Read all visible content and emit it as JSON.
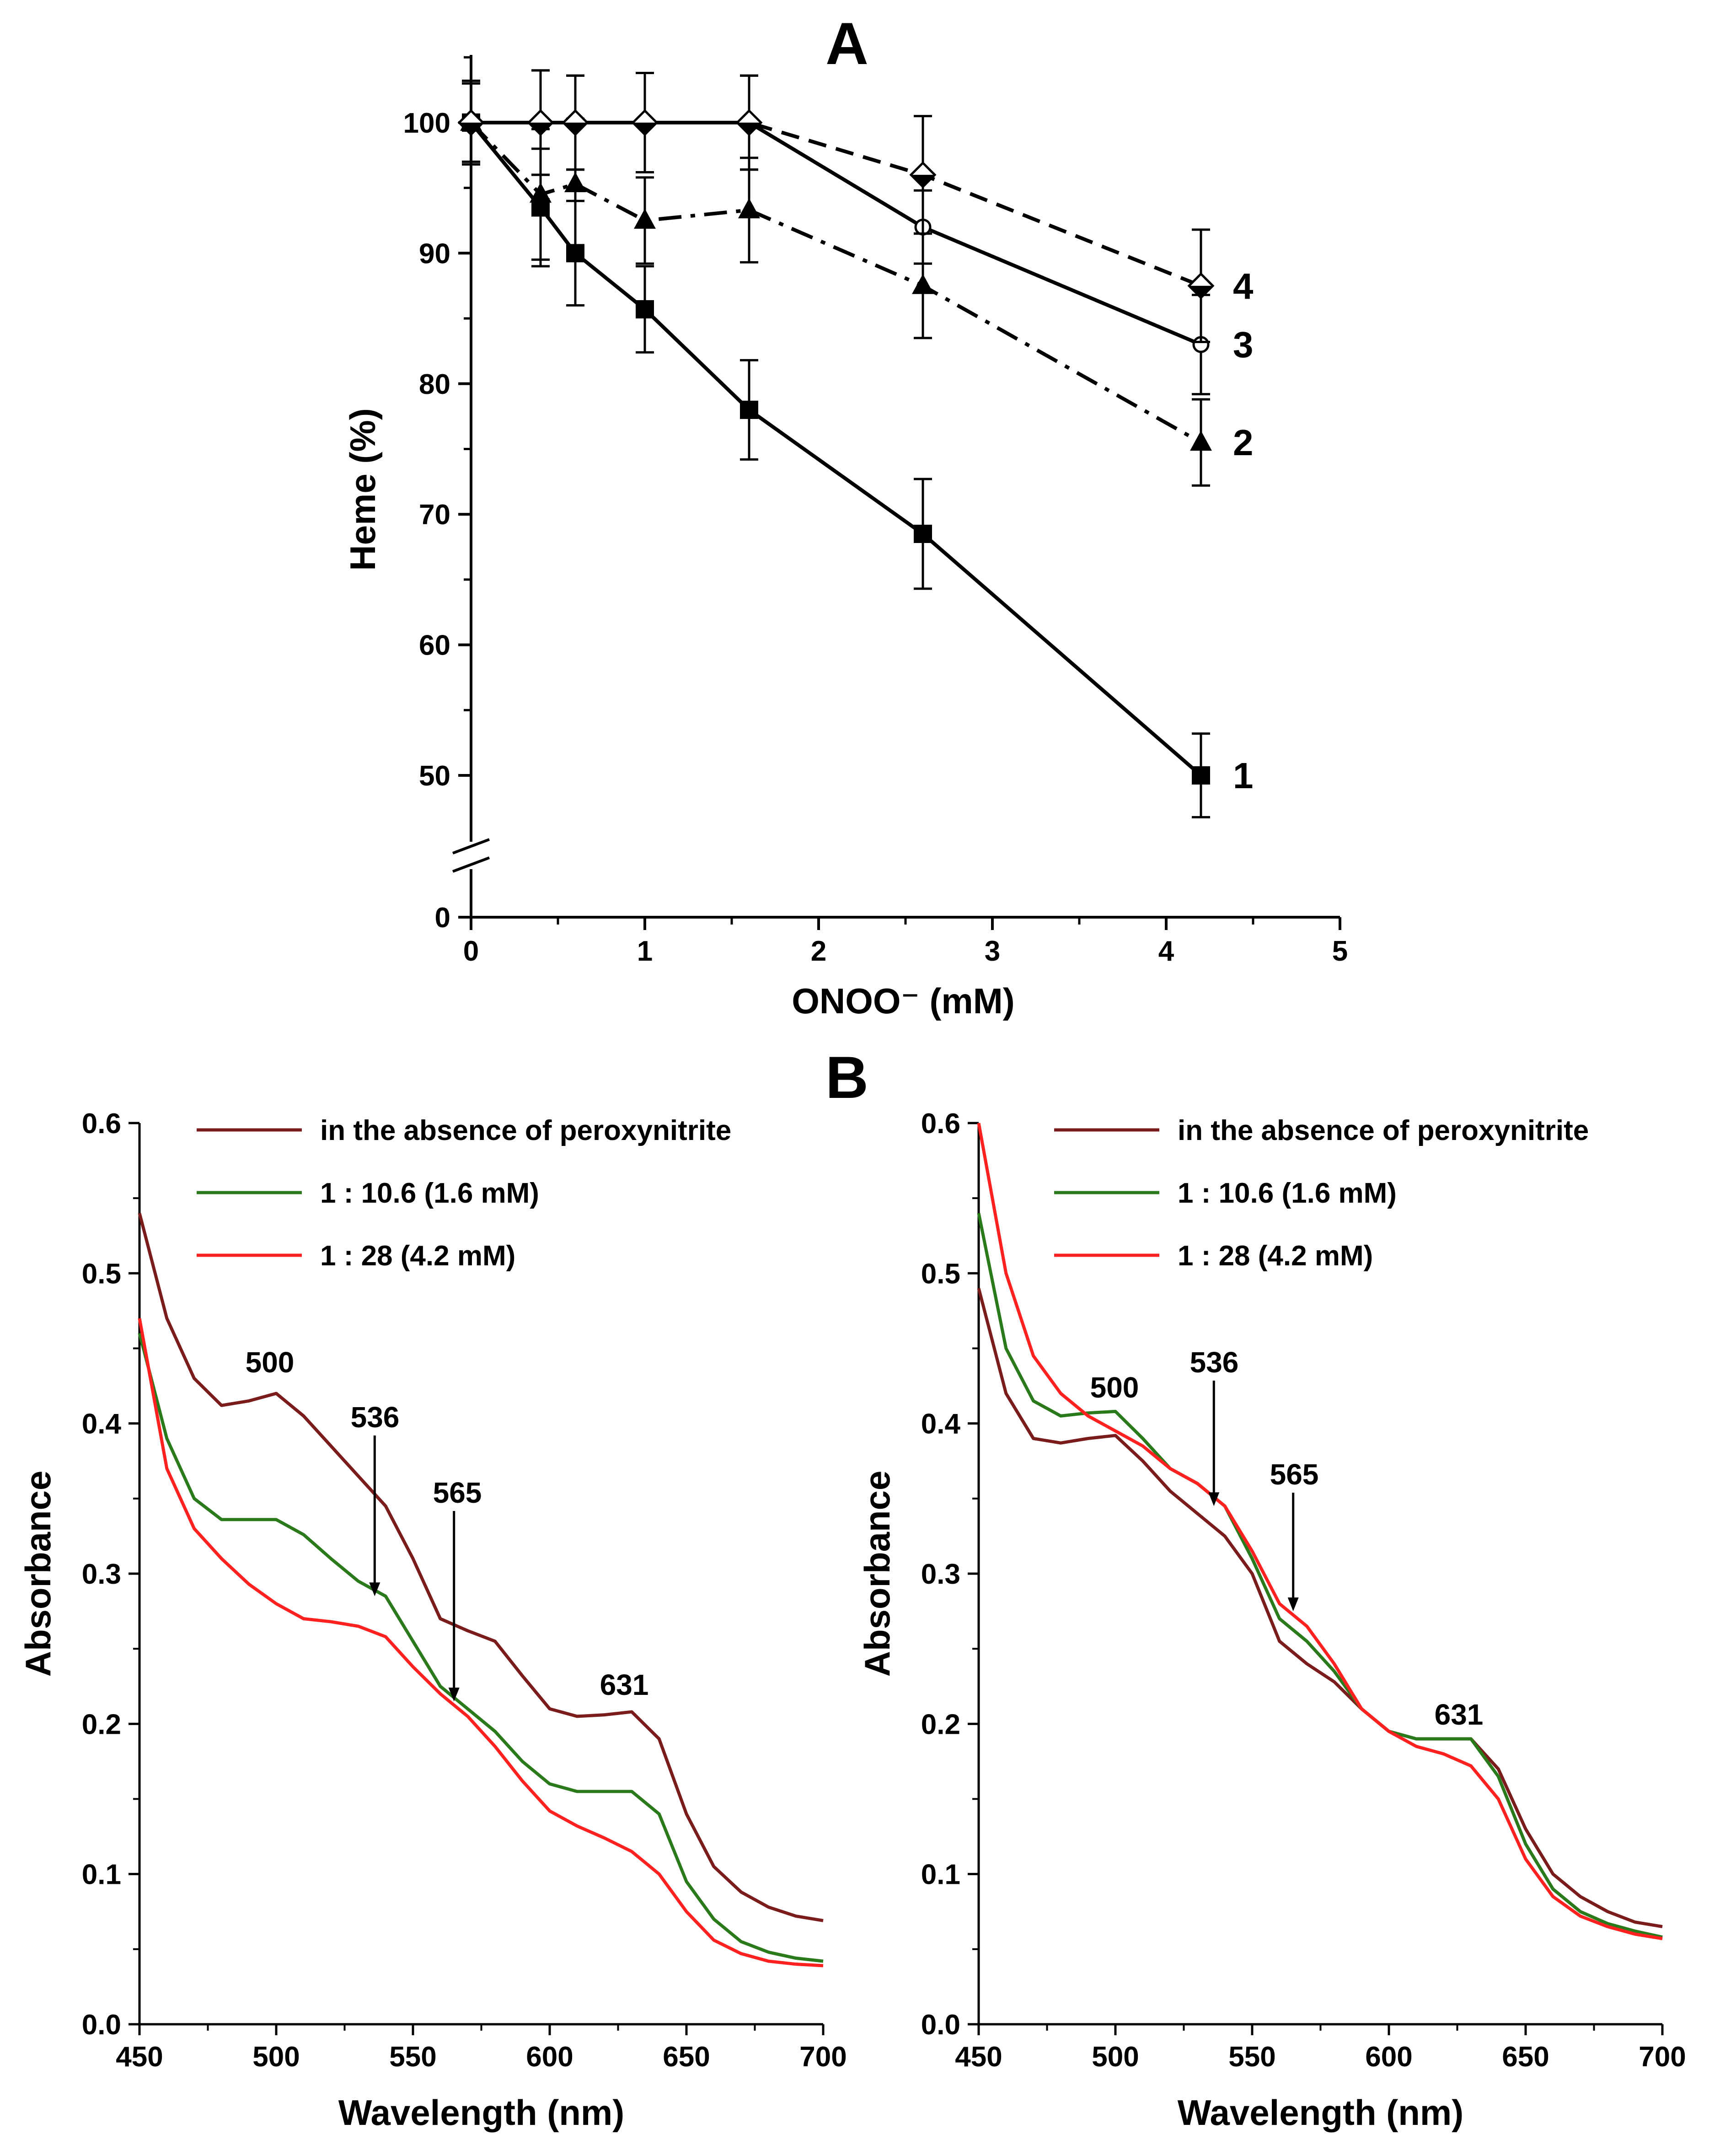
{
  "panel_a_label": "A",
  "panel_b_label": "B",
  "chart_data": [
    {
      "id": "panelA",
      "type": "line",
      "xlabel": "ONOO⁻ (mM)",
      "ylabel": "Heme (%)",
      "xlim": [
        0,
        5
      ],
      "xticks": [
        "0",
        "1",
        "2",
        "3",
        "4",
        "5"
      ],
      "yticks": [
        "0",
        "50",
        "60",
        "70",
        "80",
        "90",
        "100"
      ],
      "ylim_broken": {
        "low": 0,
        "high": [
          45,
          105
        ]
      },
      "series": [
        {
          "name": "1",
          "marker": "square",
          "line": "solid",
          "x": [
            0,
            0.4,
            0.6,
            1.0,
            1.6,
            2.6,
            4.2
          ],
          "y": [
            100,
            93.5,
            90,
            85.7,
            78,
            68.5,
            50
          ],
          "err": [
            3,
            4.5,
            4,
            3.3,
            3.8,
            4.2,
            3.2
          ]
        },
        {
          "name": "2",
          "marker": "triangle",
          "line": "dashdot",
          "x": [
            0,
            0.4,
            0.6,
            1.0,
            1.6,
            2.6,
            4.2
          ],
          "y": [
            100,
            94.5,
            95.3,
            92.5,
            93.3,
            87.5,
            75.5
          ],
          "err": [
            3,
            5,
            5,
            3.3,
            4,
            4,
            3.3
          ]
        },
        {
          "name": "3",
          "marker": "circle-open",
          "line": "solid",
          "x": [
            0,
            0.4,
            0.6,
            1.0,
            1.6,
            2.6,
            4.2
          ],
          "y": [
            100,
            100,
            100,
            100,
            100,
            92,
            83
          ],
          "err": [
            3.2,
            4,
            3.6,
            3.8,
            3.6,
            2.8,
            3.8
          ]
        },
        {
          "name": "4",
          "marker": "diamond",
          "line": "dashed",
          "x": [
            0,
            0.4,
            0.6,
            1.0,
            1.6,
            2.6,
            4.2
          ],
          "y": [
            100,
            100,
            100,
            100,
            100,
            96,
            87.5
          ],
          "err": [
            3.2,
            4,
            3.6,
            3.8,
            3.6,
            4.5,
            4.3
          ]
        }
      ]
    },
    {
      "id": "panelB1",
      "type": "line",
      "xlabel": "Wavelength (nm)",
      "ylabel": "Absorbance",
      "xlim": [
        450,
        700
      ],
      "ylim": [
        0.0,
        0.6
      ],
      "xticks": [
        "450",
        "500",
        "550",
        "600",
        "650",
        "700"
      ],
      "yticks": [
        "0.0",
        "0.1",
        "0.2",
        "0.3",
        "0.4",
        "0.5",
        "0.6"
      ],
      "peak_labels": [
        "500",
        "536",
        "565",
        "631"
      ],
      "series": [
        {
          "name": "in the absence of peroxynitrite",
          "color": "#7a1c1c",
          "x": [
            450,
            460,
            470,
            480,
            490,
            500,
            510,
            520,
            530,
            540,
            550,
            560,
            570,
            580,
            590,
            600,
            610,
            620,
            630,
            640,
            650,
            660,
            670,
            680,
            690,
            700
          ],
          "y": [
            0.54,
            0.47,
            0.43,
            0.412,
            0.415,
            0.42,
            0.405,
            0.385,
            0.365,
            0.345,
            0.31,
            0.27,
            0.262,
            0.255,
            0.232,
            0.21,
            0.205,
            0.206,
            0.208,
            0.19,
            0.14,
            0.105,
            0.088,
            0.078,
            0.072,
            0.069
          ]
        },
        {
          "name": "1 : 10.6 (1.6 mM)",
          "color": "#2a7a1c",
          "x": [
            450,
            460,
            470,
            480,
            490,
            500,
            510,
            520,
            530,
            540,
            550,
            560,
            570,
            580,
            590,
            600,
            610,
            620,
            630,
            640,
            650,
            660,
            670,
            680,
            690,
            700
          ],
          "y": [
            0.46,
            0.39,
            0.35,
            0.336,
            0.336,
            0.336,
            0.326,
            0.31,
            0.295,
            0.285,
            0.255,
            0.225,
            0.21,
            0.195,
            0.175,
            0.16,
            0.155,
            0.155,
            0.155,
            0.14,
            0.095,
            0.07,
            0.055,
            0.048,
            0.044,
            0.042
          ]
        },
        {
          "name": "1 : 28 (4.2 mM)",
          "color": "#ff2020",
          "x": [
            450,
            460,
            470,
            480,
            490,
            500,
            510,
            520,
            530,
            540,
            550,
            560,
            570,
            580,
            590,
            600,
            610,
            620,
            630,
            640,
            650,
            660,
            670,
            680,
            690,
            700
          ],
          "y": [
            0.47,
            0.37,
            0.33,
            0.31,
            0.293,
            0.28,
            0.27,
            0.268,
            0.265,
            0.258,
            0.238,
            0.22,
            0.205,
            0.185,
            0.162,
            0.142,
            0.132,
            0.124,
            0.115,
            0.1,
            0.075,
            0.056,
            0.047,
            0.042,
            0.04,
            0.039
          ]
        }
      ]
    },
    {
      "id": "panelB2",
      "type": "line",
      "xlabel": "Wavelength (nm)",
      "ylabel": "Absorbance",
      "xlim": [
        450,
        700
      ],
      "ylim": [
        0.0,
        0.6
      ],
      "xticks": [
        "450",
        "500",
        "550",
        "600",
        "650",
        "700"
      ],
      "yticks": [
        "0.0",
        "0.1",
        "0.2",
        "0.3",
        "0.4",
        "0.5",
        "0.6"
      ],
      "peak_labels": [
        "500",
        "536",
        "565",
        "631"
      ],
      "series": [
        {
          "name": "in the absence of peroxynitrite",
          "color": "#7a1c1c",
          "x": [
            450,
            460,
            470,
            480,
            490,
            500,
            510,
            520,
            530,
            540,
            550,
            560,
            570,
            580,
            590,
            600,
            610,
            620,
            630,
            640,
            650,
            660,
            670,
            680,
            690,
            700
          ],
          "y": [
            0.49,
            0.42,
            0.39,
            0.387,
            0.39,
            0.392,
            0.375,
            0.355,
            0.34,
            0.325,
            0.3,
            0.255,
            0.24,
            0.228,
            0.21,
            0.195,
            0.19,
            0.19,
            0.19,
            0.17,
            0.13,
            0.1,
            0.085,
            0.075,
            0.068,
            0.065
          ]
        },
        {
          "name": "1 : 10.6 (1.6 mM)",
          "color": "#2a7a1c",
          "x": [
            450,
            460,
            470,
            480,
            490,
            500,
            510,
            520,
            530,
            540,
            550,
            560,
            570,
            580,
            590,
            600,
            610,
            620,
            630,
            640,
            650,
            660,
            670,
            680,
            690,
            700
          ],
          "y": [
            0.54,
            0.45,
            0.415,
            0.405,
            0.407,
            0.408,
            0.39,
            0.37,
            0.36,
            0.345,
            0.31,
            0.27,
            0.255,
            0.235,
            0.21,
            0.195,
            0.19,
            0.19,
            0.19,
            0.165,
            0.12,
            0.09,
            0.075,
            0.067,
            0.062,
            0.058
          ]
        },
        {
          "name": "1 : 28 (4.2 mM)",
          "color": "#ff2020",
          "x": [
            450,
            460,
            470,
            480,
            490,
            500,
            510,
            520,
            530,
            540,
            550,
            560,
            570,
            580,
            590,
            600,
            610,
            620,
            630,
            640,
            650,
            660,
            670,
            680,
            690,
            700
          ],
          "y": [
            0.6,
            0.5,
            0.445,
            0.42,
            0.405,
            0.395,
            0.385,
            0.37,
            0.36,
            0.345,
            0.315,
            0.28,
            0.265,
            0.24,
            0.21,
            0.195,
            0.185,
            0.18,
            0.172,
            0.15,
            0.11,
            0.085,
            0.072,
            0.065,
            0.06,
            0.057
          ]
        }
      ]
    }
  ]
}
